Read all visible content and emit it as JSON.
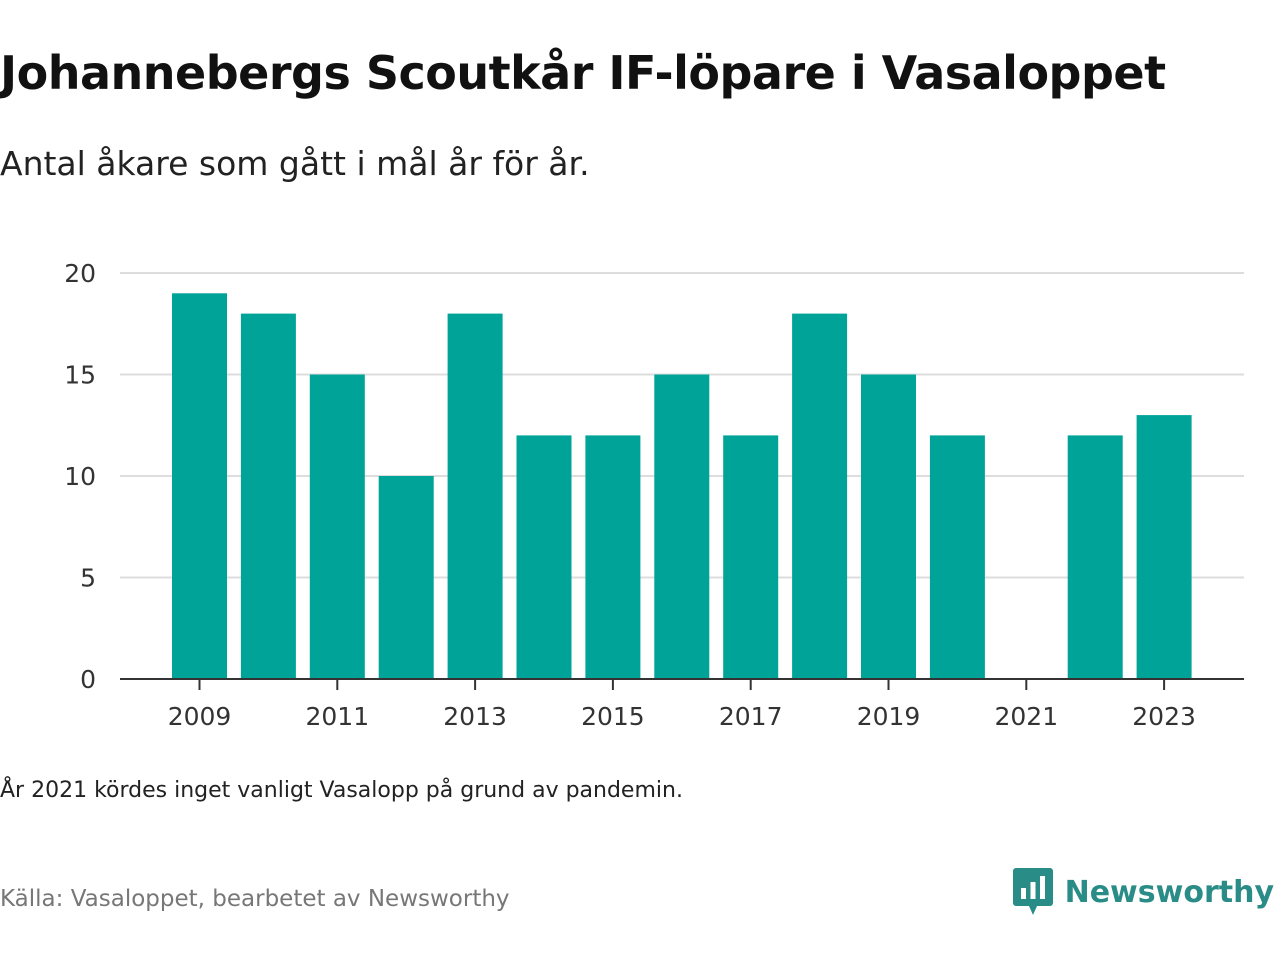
{
  "title": "Johannebergs Scoutkår IF-löpare i Vasaloppet",
  "subtitle": "Antal åkare som gått i mål år för år.",
  "note": "År 2021 kördes inget vanligt Vasalopp på grund av pandemin.",
  "source": "Källa: Vasaloppet, bearbetet av Newsworthy",
  "brand": {
    "name": "Newsworthy",
    "logo_icon": "newsworthy-logo-icon",
    "color": "#2a8c86"
  },
  "colors": {
    "bar": "#00a398",
    "grid": "#dddddd",
    "axis": "#333333"
  },
  "chart_data": {
    "type": "bar",
    "title": "Johannebergs Scoutkår IF-löpare i Vasaloppet",
    "xlabel": "",
    "ylabel": "",
    "categories": [
      2009,
      2010,
      2011,
      2012,
      2013,
      2014,
      2015,
      2016,
      2017,
      2018,
      2019,
      2020,
      2021,
      2022,
      2023
    ],
    "values": [
      19,
      18,
      15,
      10,
      18,
      12,
      12,
      15,
      12,
      18,
      15,
      12,
      null,
      12,
      13
    ],
    "x_tick_labels": [
      "2009",
      "2011",
      "2013",
      "2015",
      "2017",
      "2019",
      "2021",
      "2023"
    ],
    "y_ticks": [
      0,
      5,
      10,
      15,
      20
    ],
    "ylim": [
      0,
      20
    ],
    "grid": true,
    "legend": "none"
  }
}
